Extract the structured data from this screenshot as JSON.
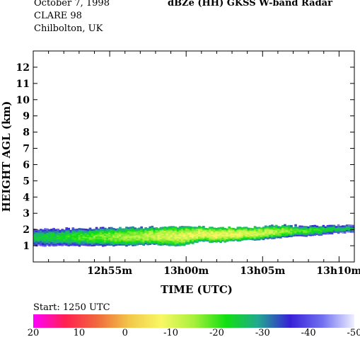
{
  "header": {
    "date": "October  7, 1998",
    "campaign": "CLARE 98",
    "location": "Chilbolton, UK",
    "title": "dBZe (HH)   GKSS  W-band Radar"
  },
  "chart_data": {
    "type": "heatmap",
    "xlabel": "TIME (UTC)",
    "ylabel": "HEIGHT AGL (km)",
    "xlim_minutes_after_1250": [
      0,
      21
    ],
    "ylim": [
      0,
      13
    ],
    "x_ticks": [
      {
        "minute": 5,
        "label": "12h55m"
      },
      {
        "minute": 10,
        "label": "13h00m"
      },
      {
        "minute": 15,
        "label": "13h05m"
      },
      {
        "minute": 20,
        "label": "13h10m"
      }
    ],
    "y_ticks": [
      1,
      2,
      3,
      4,
      5,
      6,
      7,
      8,
      9,
      10,
      11,
      12
    ],
    "start_label": "Start: 1250 UTC",
    "colorbar": {
      "ticks": [
        20,
        10,
        0,
        -10,
        -20,
        -30,
        -40,
        -50
      ],
      "range": [
        20,
        -50
      ],
      "stops": [
        "#ff00ff",
        "#ff2050",
        "#f06a3c",
        "#f2c84a",
        "#f8f864",
        "#a8f03c",
        "#10e010",
        "#22a890",
        "#3820d8",
        "#7070f0",
        "#f0f0ff"
      ]
    },
    "cloud_layer": {
      "description_units": "km AGL, minute after 12:50 UTC",
      "base": [
        [
          0,
          1.0
        ],
        [
          2,
          1.0
        ],
        [
          4,
          1.0
        ],
        [
          6,
          1.0
        ],
        [
          8,
          1.1
        ],
        [
          9,
          1.0
        ],
        [
          10,
          1.05
        ],
        [
          11,
          1.3
        ],
        [
          12,
          1.2
        ],
        [
          13,
          1.3
        ],
        [
          15,
          1.4
        ],
        [
          16,
          1.5
        ],
        [
          17,
          1.6
        ],
        [
          18,
          1.6
        ],
        [
          19,
          1.7
        ],
        [
          20,
          1.8
        ],
        [
          21,
          1.8
        ]
      ],
      "top": [
        [
          0,
          2.0
        ],
        [
          2,
          2.0
        ],
        [
          4,
          2.05
        ],
        [
          6,
          2.1
        ],
        [
          8,
          2.1
        ],
        [
          10,
          2.15
        ],
        [
          12,
          2.1
        ],
        [
          14,
          2.1
        ],
        [
          15,
          2.15
        ],
        [
          16,
          2.2
        ],
        [
          17,
          2.2
        ],
        [
          18,
          2.2
        ],
        [
          19,
          2.2
        ],
        [
          20,
          2.25
        ],
        [
          21,
          2.2
        ]
      ],
      "core_dbz": [
        [
          0,
          -25
        ],
        [
          2,
          -22
        ],
        [
          4,
          -18
        ],
        [
          6,
          -15
        ],
        [
          8,
          -12
        ],
        [
          10,
          -10
        ],
        [
          12,
          -9
        ],
        [
          14,
          -10
        ],
        [
          16,
          -14
        ],
        [
          18,
          -20
        ],
        [
          20,
          -24
        ],
        [
          21,
          -26
        ]
      ]
    }
  }
}
